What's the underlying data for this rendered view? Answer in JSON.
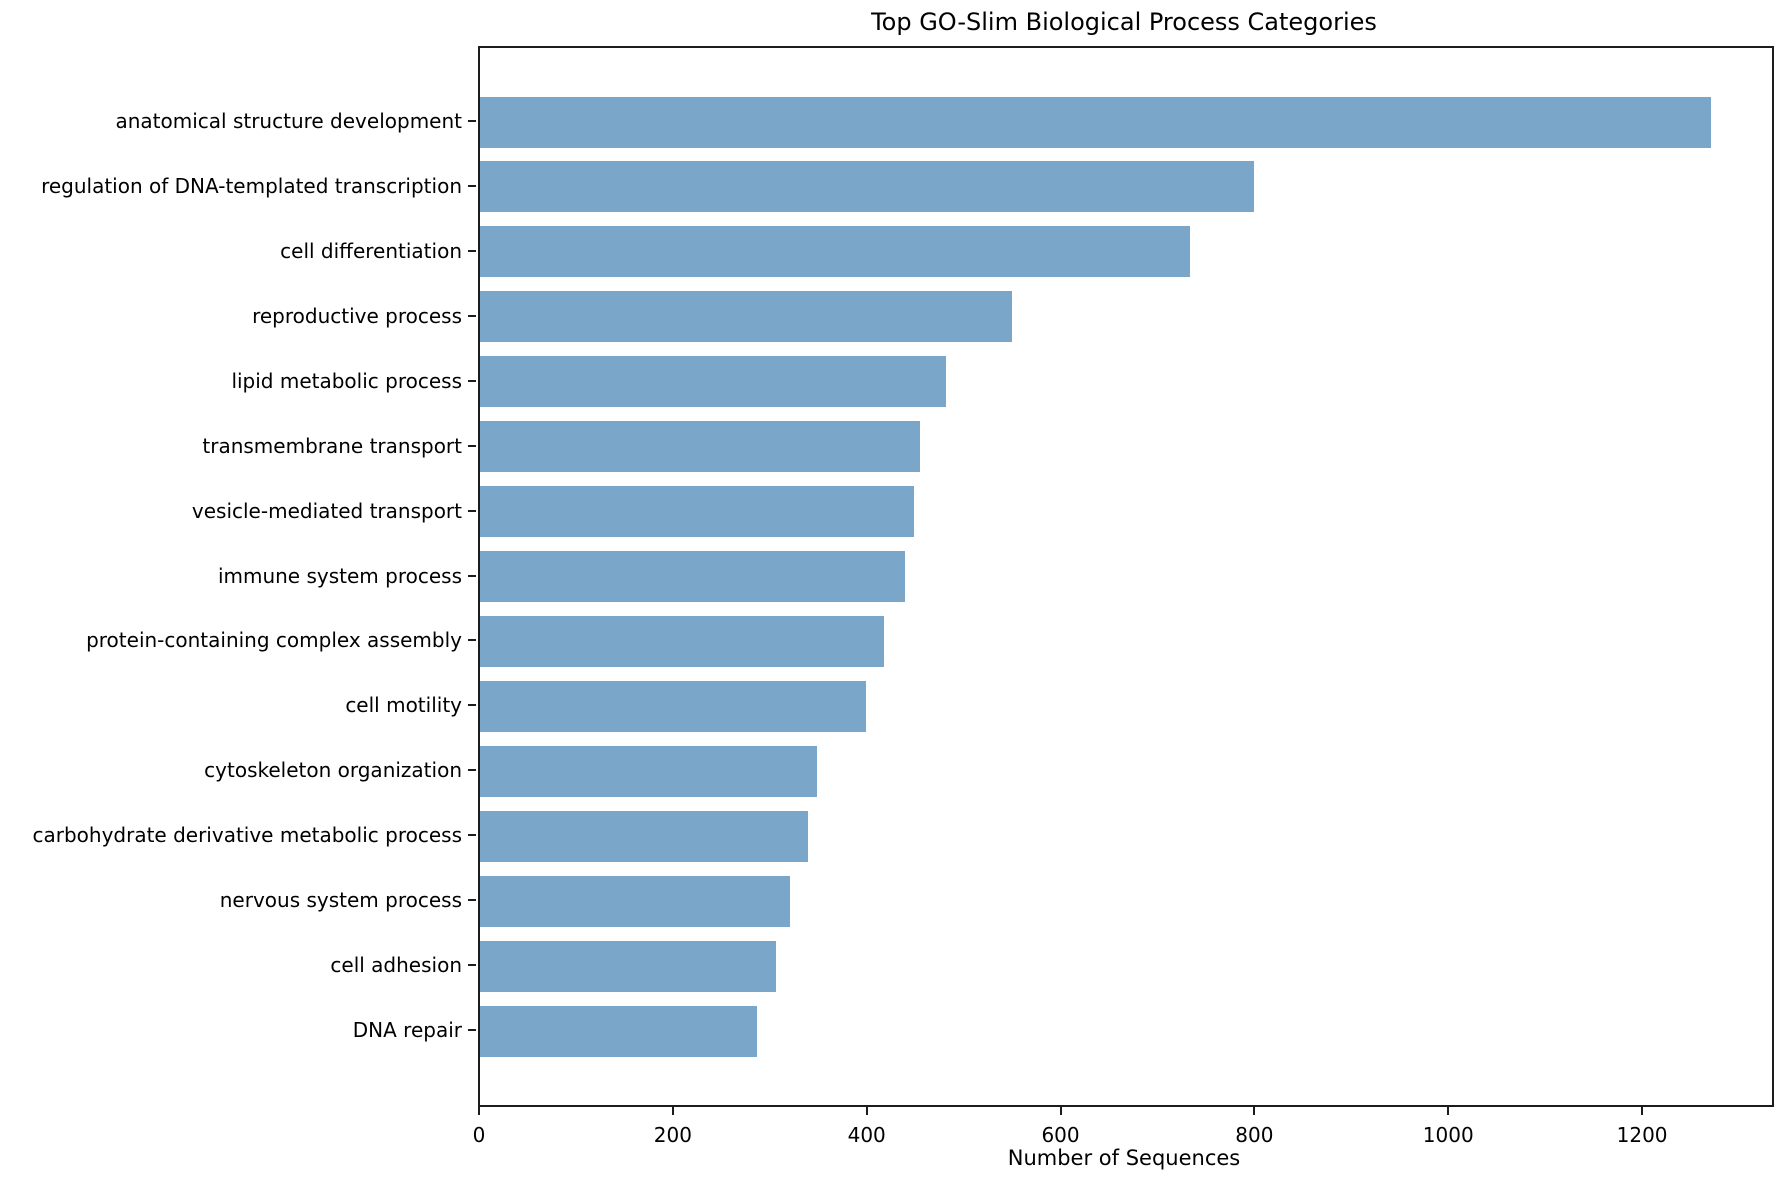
{
  "chart_data": {
    "type": "bar",
    "orientation": "horizontal",
    "title": "Top GO-Slim Biological Process Categories",
    "xlabel": "Number of Sequences",
    "ylabel": "",
    "categories": [
      "anatomical structure development",
      "regulation of DNA-templated transcription",
      "cell differentiation",
      "reproductive process",
      "lipid metabolic process",
      "transmembrane transport",
      "vesicle-mediated transport",
      "immune system process",
      "protein-containing complex assembly",
      "cell motility",
      "cytoskeleton organization",
      "carbohydrate derivative metabolic process",
      "nervous system process",
      "cell adhesion",
      "DNA repair"
    ],
    "values": [
      1270,
      799,
      733,
      549,
      481,
      454,
      448,
      438,
      417,
      398,
      348,
      338,
      320,
      305,
      286
    ],
    "xticks": [
      0,
      200,
      400,
      600,
      800,
      1000,
      1200
    ],
    "xlim": [
      0,
      1333
    ],
    "grid": false,
    "legend": null,
    "bar_color": "#7aa6c9",
    "axis_color": "#1c1c1c",
    "text_color": "#000000"
  }
}
